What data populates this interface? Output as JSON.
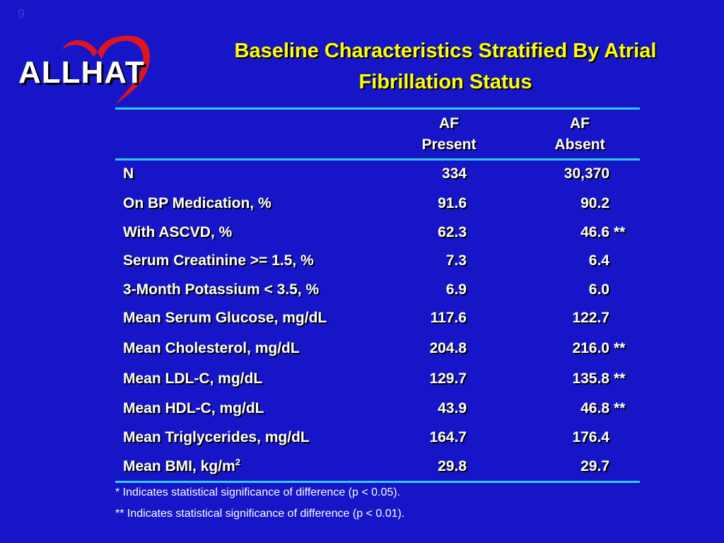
{
  "slide_number": "9",
  "logo": {
    "text": "ALLHAT",
    "heart_color": "#e0141e"
  },
  "title_line1": "Baseline Characteristics Stratified By Atrial",
  "title_line2": "Fibrillation Status",
  "table": {
    "col1_header": [
      "AF",
      "Present"
    ],
    "col2_header": [
      "AF",
      "Absent"
    ],
    "rows": [
      {
        "label": "N",
        "present": "334",
        "absent": "30,370",
        "sig": ""
      },
      {
        "label": "On BP Medication, %",
        "present": "91.6",
        "absent": "90.2",
        "sig": ""
      },
      {
        "label": "With ASCVD, %",
        "present": "62.3",
        "absent": "46.6",
        "sig": "**"
      },
      {
        "label": "Serum Creatinine >= 1.5, %",
        "present": "7.3",
        "absent": "6.4",
        "sig": ""
      },
      {
        "label": "3-Month Potassium < 3.5, %",
        "present": "6.9",
        "absent": "6.0",
        "sig": ""
      },
      {
        "label": "Mean Serum Glucose, mg/dL",
        "present": "117.6",
        "absent": "122.7",
        "sig": ""
      },
      {
        "label": "Mean Cholesterol, mg/dL",
        "present": "204.8",
        "absent": "216.0",
        "sig": "**"
      },
      {
        "label": "Mean LDL-C, mg/dL",
        "present": "129.7",
        "absent": "135.8",
        "sig": "**"
      },
      {
        "label": "Mean HDL-C, mg/dL",
        "present": "43.9",
        "absent": "46.8",
        "sig": "**"
      },
      {
        "label": "Mean Triglycerides, mg/dL",
        "present": "164.7",
        "absent": "176.4",
        "sig": ""
      },
      {
        "label": "Mean BMI, kg/m",
        "label_sup": "2",
        "present": "29.8",
        "absent": "29.7",
        "sig": ""
      }
    ]
  },
  "footnotes": {
    "single": "*  Indicates statistical significance of difference (p < 0.05).",
    "double": "** Indicates statistical significance of difference (p < 0.01)."
  },
  "colors": {
    "background": "#1616c8",
    "title": "#ffff00",
    "rule": "#33ccff",
    "text": "#ffffff"
  }
}
